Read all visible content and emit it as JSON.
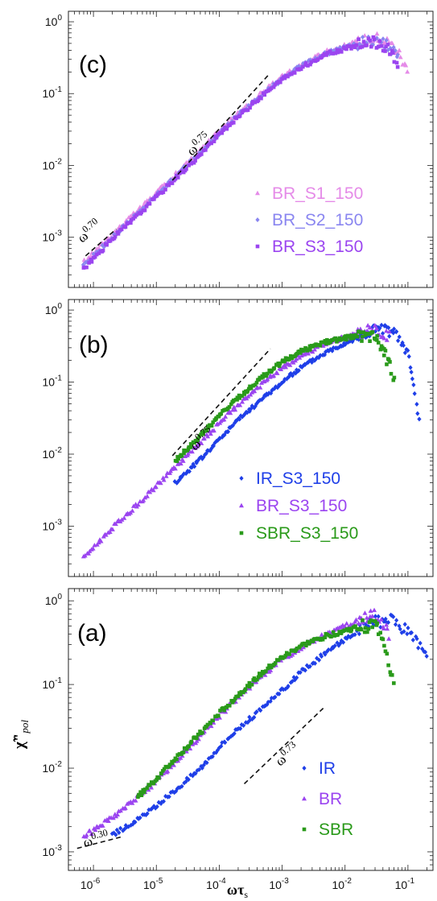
{
  "chart_data": [
    {
      "panel": "(c)",
      "type": "scatter",
      "x_scale": "log",
      "y_scale": "log",
      "xlim": [
        4e-07,
        0.25
      ],
      "ylim": [
        0.0002,
        1.4
      ],
      "series": [
        {
          "name": "BR_S1_150",
          "color": "#e58be8",
          "marker": "triangle",
          "x": [
            7e-07,
            1e-06,
            2e-06,
            5e-06,
            1e-05,
            2e-05,
            5e-05,
            0.0001,
            0.0002,
            0.0005,
            0.001,
            0.002,
            0.005,
            0.01,
            0.02,
            0.03,
            0.05,
            0.07,
            0.1
          ],
          "y": [
            0.00045,
            0.0006,
            0.0011,
            0.0023,
            0.0041,
            0.0074,
            0.016,
            0.03,
            0.052,
            0.105,
            0.17,
            0.25,
            0.38,
            0.46,
            0.55,
            0.6,
            0.52,
            0.38,
            0.2
          ]
        },
        {
          "name": "BR_S2_150",
          "color": "#8a86f0",
          "marker": "diamond",
          "x": [
            7e-07,
            1e-06,
            2e-06,
            5e-06,
            1e-05,
            2e-05,
            5e-05,
            0.0001,
            0.0002,
            0.0005,
            0.001,
            0.002,
            0.005,
            0.01,
            0.02,
            0.03,
            0.05,
            0.07
          ],
          "y": [
            0.0004,
            0.00055,
            0.001,
            0.0021,
            0.0038,
            0.007,
            0.015,
            0.028,
            0.05,
            0.1,
            0.16,
            0.24,
            0.36,
            0.44,
            0.52,
            0.56,
            0.46,
            0.3
          ]
        },
        {
          "name": "BR_S3_150",
          "color": "#9b45f0",
          "marker": "square",
          "x": [
            7e-07,
            1e-06,
            2e-06,
            5e-06,
            1e-05,
            2e-05,
            5e-05,
            0.0001,
            0.0002,
            0.0005,
            0.001,
            0.002,
            0.005,
            0.01,
            0.02,
            0.03,
            0.05,
            0.07
          ],
          "y": [
            0.00037,
            0.0005,
            0.00095,
            0.002,
            0.0036,
            0.0066,
            0.014,
            0.027,
            0.048,
            0.096,
            0.155,
            0.23,
            0.35,
            0.42,
            0.5,
            0.52,
            0.42,
            0.25
          ]
        }
      ],
      "annotations": [
        {
          "base": "ω",
          "exp": "0.70"
        },
        {
          "base": "ω",
          "exp": "0.75"
        }
      ]
    },
    {
      "panel": "(b)",
      "type": "scatter",
      "x_scale": "log",
      "y_scale": "log",
      "xlim": [
        4e-07,
        0.25
      ],
      "ylim": [
        0.0002,
        1.4
      ],
      "series": [
        {
          "name": "IR_S3_150",
          "color": "#1f3fe8",
          "marker": "diamond",
          "x": [
            2e-05,
            5e-05,
            0.0001,
            0.0002,
            0.0005,
            0.001,
            0.002,
            0.005,
            0.01,
            0.02,
            0.03,
            0.05,
            0.07,
            0.1,
            0.12,
            0.15
          ],
          "y": [
            0.004,
            0.0085,
            0.016,
            0.03,
            0.06,
            0.1,
            0.16,
            0.26,
            0.35,
            0.45,
            0.55,
            0.52,
            0.42,
            0.25,
            0.1,
            0.03
          ]
        },
        {
          "name": "BR_S3_150",
          "color": "#9b45f0",
          "marker": "triangle",
          "x": [
            7e-07,
            1e-06,
            2e-06,
            5e-06,
            1e-05,
            2e-05,
            5e-05,
            0.0001,
            0.0002,
            0.0005,
            0.001,
            0.002,
            0.005,
            0.01,
            0.02,
            0.03,
            0.05
          ],
          "y": [
            0.00037,
            0.0005,
            0.00095,
            0.002,
            0.0036,
            0.0066,
            0.014,
            0.027,
            0.048,
            0.096,
            0.155,
            0.23,
            0.35,
            0.42,
            0.5,
            0.52,
            0.42
          ]
        },
        {
          "name": "SBR_S3_150",
          "color": "#2a9a1a",
          "marker": "square",
          "x": [
            2e-05,
            5e-05,
            0.0001,
            0.0002,
            0.0005,
            0.001,
            0.002,
            0.005,
            0.01,
            0.02,
            0.03,
            0.04,
            0.05,
            0.06
          ],
          "y": [
            0.008,
            0.018,
            0.034,
            0.06,
            0.12,
            0.19,
            0.27,
            0.36,
            0.41,
            0.45,
            0.44,
            0.3,
            0.17,
            0.12
          ]
        }
      ],
      "annotations": [
        {
          "base": "ω",
          "exp": "0.75"
        }
      ]
    },
    {
      "panel": "(a)",
      "type": "scatter",
      "x_scale": "log",
      "y_scale": "log",
      "xlim": [
        4e-07,
        0.25
      ],
      "ylim": [
        0.0006,
        1.4
      ],
      "xlabel_base": "ωτ",
      "xlabel_sub": "s",
      "ylabel_main": "χ̃\"",
      "ylabel_sub": "pol",
      "xticks": [
        {
          "base": "10",
          "exp": "-6",
          "value": 1e-06
        },
        {
          "base": "10",
          "exp": "-5",
          "value": 1e-05
        },
        {
          "base": "10",
          "exp": "-4",
          "value": 0.0001
        },
        {
          "base": "10",
          "exp": "-3",
          "value": 0.001
        },
        {
          "base": "10",
          "exp": "-2",
          "value": 0.01
        },
        {
          "base": "10",
          "exp": "-1",
          "value": 0.1
        }
      ],
      "series": [
        {
          "name": "IR",
          "color": "#1f3fe8",
          "marker": "diamond",
          "x": [
            2e-06,
            5e-06,
            1e-05,
            2e-05,
            5e-05,
            0.0001,
            0.0002,
            0.0005,
            0.001,
            0.002,
            0.005,
            0.01,
            0.02,
            0.03,
            0.05,
            0.07,
            0.1,
            0.15,
            0.2
          ],
          "y": [
            0.0016,
            0.0024,
            0.0035,
            0.0055,
            0.01,
            0.018,
            0.03,
            0.052,
            0.085,
            0.14,
            0.24,
            0.35,
            0.48,
            0.55,
            0.58,
            0.52,
            0.42,
            0.3,
            0.2
          ]
        },
        {
          "name": "BR",
          "color": "#9b45f0",
          "marker": "triangle",
          "x": [
            7e-07,
            1e-06,
            2e-06,
            5e-06,
            1e-05,
            2e-05,
            5e-05,
            0.0001,
            0.0002,
            0.0005,
            0.001,
            0.002,
            0.005,
            0.01,
            0.02,
            0.03,
            0.05
          ],
          "y": [
            0.0015,
            0.0018,
            0.0026,
            0.0045,
            0.007,
            0.012,
            0.024,
            0.042,
            0.07,
            0.13,
            0.2,
            0.28,
            0.4,
            0.5,
            0.6,
            0.65,
            0.4
          ]
        },
        {
          "name": "SBR",
          "color": "#2a9a1a",
          "marker": "square",
          "x": [
            5e-06,
            1e-05,
            2e-05,
            5e-05,
            0.0001,
            0.0002,
            0.0005,
            0.001,
            0.002,
            0.005,
            0.01,
            0.02,
            0.03,
            0.04,
            0.05,
            0.06
          ],
          "y": [
            0.0045,
            0.0075,
            0.013,
            0.026,
            0.045,
            0.075,
            0.14,
            0.21,
            0.29,
            0.38,
            0.44,
            0.5,
            0.52,
            0.38,
            0.18,
            0.1
          ]
        }
      ],
      "annotations": [
        {
          "base": "ω",
          "exp": "0.30"
        },
        {
          "base": "ω",
          "exp": "0.73"
        }
      ]
    }
  ],
  "ytick_base": "10",
  "yticks": [
    {
      "exp": "0",
      "value": 1
    },
    {
      "exp": "-1",
      "value": 0.1
    },
    {
      "exp": "-2",
      "value": 0.01
    },
    {
      "exp": "-3",
      "value": 0.001
    }
  ]
}
